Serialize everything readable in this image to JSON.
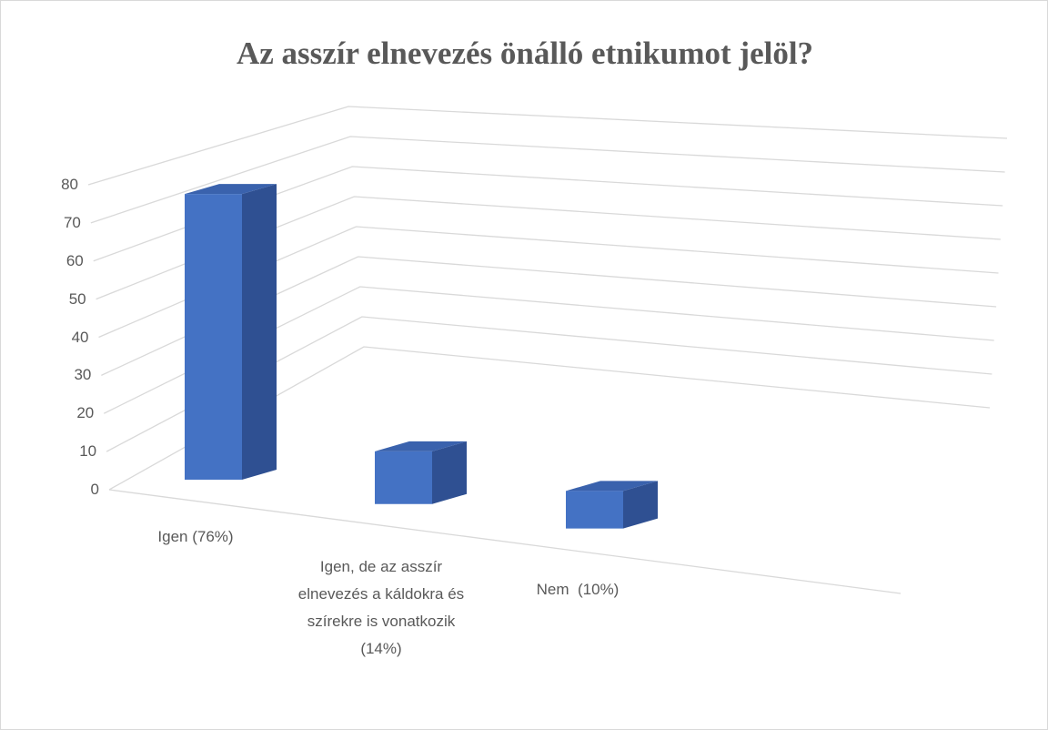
{
  "chart_data": {
    "type": "bar3d",
    "title": "Az asszír elnevezés önálló etnikumot jelöl?",
    "categories": [
      "Igen (76%)",
      "Igen, de az asszír elnevezés a káldokra és szírekre is vonatkozik (14%)",
      "Nem  (10%)"
    ],
    "values": [
      76,
      14,
      10
    ],
    "color": "#4472c4",
    "ylim": [
      0,
      80
    ],
    "yticks": [
      0,
      10,
      20,
      30,
      40,
      50,
      60,
      70,
      80
    ],
    "grid": true
  }
}
